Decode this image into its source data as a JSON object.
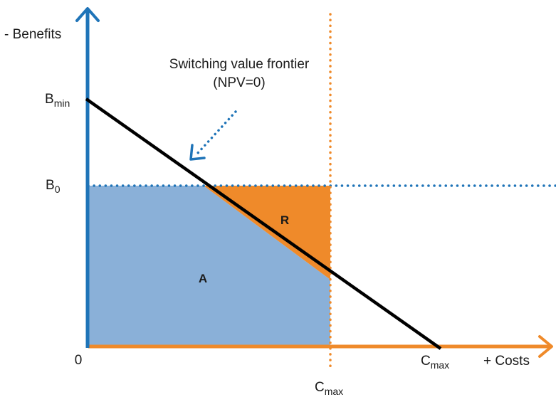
{
  "colors": {
    "blue_axis": "#1f74b8",
    "orange_axis": "#ef8a2a",
    "region_a": "#8ab0d8",
    "region_r": "#ef8a2a",
    "frontier_line": "#000000",
    "dotted_blue": "#1f74b8",
    "dotted_orange": "#ef8a2a"
  },
  "labels": {
    "y_axis": "- Benefits",
    "x_axis": "+ Costs",
    "origin": "0",
    "b_min_main": "B",
    "b_min_sub": "min",
    "b0_main": "B",
    "b0_sub": "0",
    "c_max_main": "C",
    "c_max_sub": "max",
    "frontier_line1": "Switching value frontier",
    "frontier_line2": "(NPV=0)",
    "region_a": "A",
    "region_r": "R"
  }
}
